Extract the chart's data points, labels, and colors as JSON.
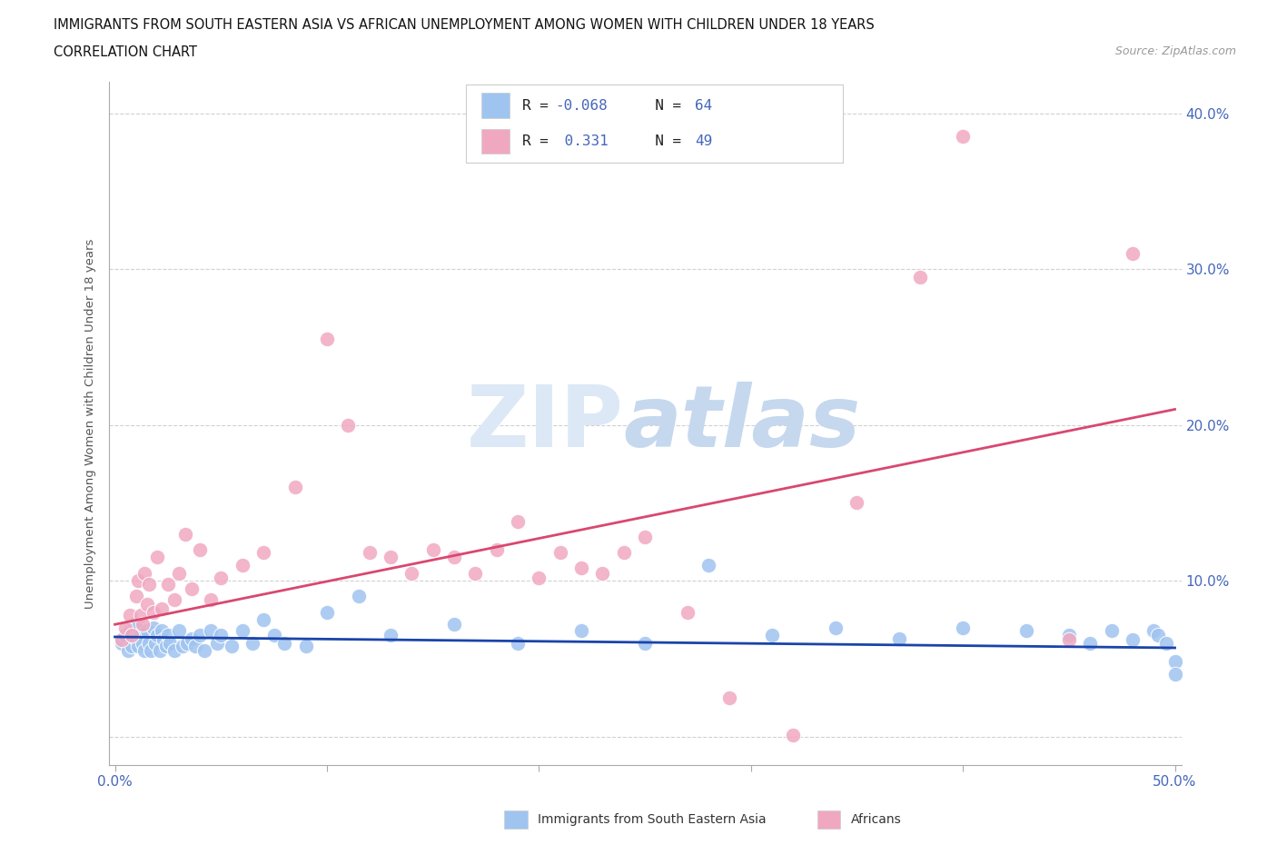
{
  "title_line1": "IMMIGRANTS FROM SOUTH EASTERN ASIA VS AFRICAN UNEMPLOYMENT AMONG WOMEN WITH CHILDREN UNDER 18 YEARS",
  "title_line2": "CORRELATION CHART",
  "source": "Source: ZipAtlas.com",
  "ylabel": "Unemployment Among Women with Children Under 18 years",
  "xlim": [
    -0.003,
    0.503
  ],
  "ylim": [
    -0.018,
    0.42
  ],
  "blue_color": "#A0C4F0",
  "pink_color": "#F0A8C0",
  "blue_line_color": "#1A44AA",
  "pink_line_color": "#D84870",
  "background_color": "#FFFFFF",
  "grid_color": "#CCCCCC",
  "blue_scatter_x": [
    0.003,
    0.005,
    0.006,
    0.007,
    0.008,
    0.009,
    0.01,
    0.01,
    0.011,
    0.012,
    0.013,
    0.014,
    0.015,
    0.016,
    0.017,
    0.018,
    0.019,
    0.02,
    0.021,
    0.022,
    0.023,
    0.024,
    0.025,
    0.026,
    0.028,
    0.03,
    0.032,
    0.034,
    0.036,
    0.038,
    0.04,
    0.042,
    0.045,
    0.048,
    0.05,
    0.055,
    0.06,
    0.065,
    0.07,
    0.075,
    0.08,
    0.09,
    0.1,
    0.115,
    0.13,
    0.16,
    0.19,
    0.22,
    0.25,
    0.28,
    0.31,
    0.34,
    0.37,
    0.4,
    0.43,
    0.45,
    0.46,
    0.47,
    0.48,
    0.49,
    0.492,
    0.496,
    0.5,
    0.5
  ],
  "blue_scatter_y": [
    0.06,
    0.065,
    0.055,
    0.068,
    0.058,
    0.072,
    0.063,
    0.07,
    0.058,
    0.065,
    0.06,
    0.055,
    0.068,
    0.06,
    0.055,
    0.07,
    0.06,
    0.065,
    0.055,
    0.068,
    0.062,
    0.058,
    0.065,
    0.06,
    0.055,
    0.068,
    0.058,
    0.06,
    0.063,
    0.058,
    0.065,
    0.055,
    0.068,
    0.06,
    0.065,
    0.058,
    0.068,
    0.06,
    0.075,
    0.065,
    0.06,
    0.058,
    0.08,
    0.09,
    0.065,
    0.072,
    0.06,
    0.068,
    0.06,
    0.11,
    0.065,
    0.07,
    0.063,
    0.07,
    0.068,
    0.065,
    0.06,
    0.068,
    0.062,
    0.068,
    0.065,
    0.06,
    0.048,
    0.04
  ],
  "pink_scatter_x": [
    0.003,
    0.005,
    0.007,
    0.008,
    0.01,
    0.011,
    0.012,
    0.013,
    0.014,
    0.015,
    0.016,
    0.018,
    0.02,
    0.022,
    0.025,
    0.028,
    0.03,
    0.033,
    0.036,
    0.04,
    0.045,
    0.05,
    0.06,
    0.07,
    0.085,
    0.1,
    0.11,
    0.12,
    0.13,
    0.14,
    0.15,
    0.16,
    0.17,
    0.18,
    0.19,
    0.2,
    0.21,
    0.22,
    0.23,
    0.24,
    0.25,
    0.27,
    0.29,
    0.32,
    0.35,
    0.38,
    0.4,
    0.45,
    0.48
  ],
  "pink_scatter_y": [
    0.062,
    0.07,
    0.078,
    0.065,
    0.09,
    0.1,
    0.078,
    0.072,
    0.105,
    0.085,
    0.098,
    0.08,
    0.115,
    0.082,
    0.098,
    0.088,
    0.105,
    0.13,
    0.095,
    0.12,
    0.088,
    0.102,
    0.11,
    0.118,
    0.16,
    0.255,
    0.2,
    0.118,
    0.115,
    0.105,
    0.12,
    0.115,
    0.105,
    0.12,
    0.138,
    0.102,
    0.118,
    0.108,
    0.105,
    0.118,
    0.128,
    0.08,
    0.025,
    0.001,
    0.15,
    0.295,
    0.385,
    0.062,
    0.31
  ],
  "blue_trendline_x": [
    0.0,
    0.5
  ],
  "blue_trendline_y": [
    0.064,
    0.057
  ],
  "pink_trendline_x": [
    0.0,
    0.5
  ],
  "pink_trendline_y": [
    0.072,
    0.21
  ]
}
